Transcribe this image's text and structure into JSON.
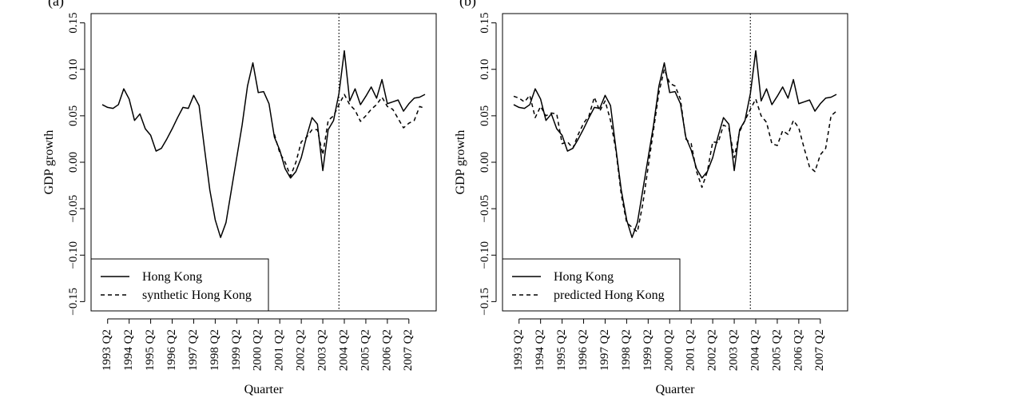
{
  "chart_data": [
    {
      "type": "line",
      "panel_label": "(a)",
      "xlabel": "Quarter",
      "ylabel": "GDP growth",
      "ylim": [
        -0.16,
        0.16
      ],
      "yticks": [
        "−0.15",
        "−0.10",
        "−0.05",
        "0.00",
        "0.05",
        "0.10",
        "0.15"
      ],
      "ytick_values": [
        -0.15,
        -0.1,
        -0.05,
        0.0,
        0.05,
        0.1,
        0.15
      ],
      "xticks": [
        "1993 Q2",
        "1994 Q2",
        "1995 Q2",
        "1996 Q2",
        "1997 Q2",
        "1998 Q2",
        "1999 Q2",
        "2000 Q2",
        "2001 Q2",
        "2002 Q2",
        "2003 Q2",
        "2004 Q2",
        "2005 Q2",
        "2006 Q2",
        "2007 Q2"
      ],
      "x_start": "1993 Q1",
      "treatment_line": "2004 Q1",
      "legend": {
        "position": "bottom-left",
        "entries": [
          "Hong Kong",
          "synthetic Hong Kong"
        ]
      },
      "series": [
        {
          "name": "Hong Kong",
          "style": "solid",
          "values": [
            0.062,
            0.059,
            0.058,
            0.062,
            0.079,
            0.068,
            0.045,
            0.052,
            0.036,
            0.029,
            0.012,
            0.015,
            0.025,
            0.036,
            0.048,
            0.059,
            0.058,
            0.072,
            0.061,
            0.015,
            -0.03,
            -0.062,
            -0.081,
            -0.065,
            -0.03,
            0.005,
            0.04,
            0.082,
            0.107,
            0.075,
            0.076,
            0.063,
            0.027,
            0.013,
            -0.007,
            -0.017,
            -0.01,
            0.005,
            0.028,
            0.048,
            0.041,
            -0.009,
            0.035,
            0.045,
            0.074,
            0.12,
            0.066,
            0.079,
            0.062,
            0.071,
            0.081,
            0.069,
            0.089,
            0.063,
            0.065,
            0.067,
            0.055,
            0.063,
            0.069,
            0.07,
            0.073
          ]
        },
        {
          "name": "synthetic Hong Kong",
          "style": "dashed",
          "values": [
            null,
            null,
            null,
            null,
            null,
            null,
            null,
            null,
            null,
            null,
            null,
            null,
            null,
            null,
            null,
            null,
            null,
            null,
            null,
            null,
            null,
            null,
            null,
            null,
            null,
            null,
            null,
            null,
            null,
            null,
            null,
            null,
            0.03,
            0.01,
            0.0,
            -0.015,
            0.0,
            0.022,
            0.027,
            0.035,
            0.035,
            0.008,
            0.045,
            0.05,
            0.062,
            0.073,
            0.062,
            0.056,
            0.044,
            0.05,
            0.057,
            0.062,
            0.07,
            0.06,
            0.057,
            0.047,
            0.037,
            0.042,
            0.045,
            0.06,
            0.058
          ]
        }
      ]
    },
    {
      "type": "line",
      "panel_label": "(b)",
      "xlabel": "Quarter",
      "ylabel": "GDP growth",
      "ylim": [
        -0.16,
        0.16
      ],
      "yticks": [
        "−0.15",
        "−0.10",
        "−0.05",
        "0.00",
        "0.05",
        "0.10",
        "0.15"
      ],
      "ytick_values": [
        -0.15,
        -0.1,
        -0.05,
        0.0,
        0.05,
        0.1,
        0.15
      ],
      "xticks": [
        "1993 Q2",
        "1994 Q2",
        "1995 Q2",
        "1996 Q2",
        "1997 Q2",
        "1998 Q2",
        "1999 Q2",
        "2000 Q2",
        "2001 Q2",
        "2002 Q2",
        "2003 Q2",
        "2004 Q2",
        "2005 Q2",
        "2006 Q2",
        "2007 Q2"
      ],
      "x_start": "1993 Q1",
      "treatment_line": "2004 Q1",
      "legend": {
        "position": "bottom-left",
        "entries": [
          "Hong Kong",
          "predicted Hong Kong"
        ]
      },
      "series": [
        {
          "name": "Hong Kong",
          "style": "solid",
          "values": [
            0.062,
            0.059,
            0.058,
            0.062,
            0.079,
            0.068,
            0.045,
            0.052,
            0.036,
            0.029,
            0.012,
            0.015,
            0.025,
            0.036,
            0.048,
            0.059,
            0.058,
            0.072,
            0.061,
            0.015,
            -0.03,
            -0.062,
            -0.081,
            -0.065,
            -0.03,
            0.005,
            0.04,
            0.082,
            0.107,
            0.075,
            0.076,
            0.063,
            0.027,
            0.013,
            -0.007,
            -0.017,
            -0.01,
            0.005,
            0.028,
            0.048,
            0.041,
            -0.009,
            0.035,
            0.045,
            0.074,
            0.12,
            0.066,
            0.079,
            0.062,
            0.071,
            0.081,
            0.069,
            0.089,
            0.063,
            0.065,
            0.067,
            0.055,
            0.063,
            0.069,
            0.07,
            0.073
          ]
        },
        {
          "name": "predicted Hong Kong",
          "style": "dashed",
          "values": [
            0.071,
            0.069,
            0.065,
            0.072,
            0.048,
            0.06,
            0.05,
            0.053,
            0.052,
            0.02,
            0.022,
            0.015,
            0.03,
            0.042,
            0.05,
            0.07,
            0.055,
            0.066,
            0.045,
            0.013,
            -0.035,
            -0.065,
            -0.07,
            -0.075,
            -0.045,
            -0.005,
            0.035,
            0.075,
            0.1,
            0.085,
            0.082,
            0.068,
            0.025,
            0.02,
            -0.01,
            -0.027,
            -0.01,
            0.022,
            0.021,
            0.04,
            0.037,
            0.005,
            0.033,
            0.045,
            0.057,
            0.068,
            0.05,
            0.043,
            0.02,
            0.018,
            0.034,
            0.03,
            0.045,
            0.037,
            0.015,
            -0.005,
            -0.01,
            0.008,
            0.015,
            0.05,
            0.055
          ]
        }
      ]
    }
  ]
}
